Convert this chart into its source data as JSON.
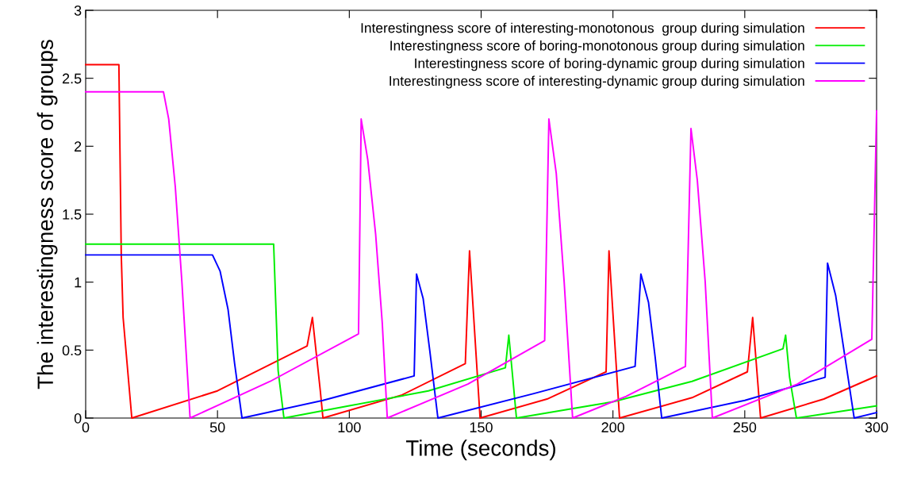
{
  "chart_data": {
    "type": "line",
    "xlabel": "Time (seconds)",
    "ylabel": "The interestingness score of groups",
    "xlim": [
      0,
      300
    ],
    "ylim": [
      0,
      3
    ],
    "xticks": [
      0,
      50,
      100,
      150,
      200,
      250,
      300
    ],
    "yticks": [
      0,
      0.5,
      1,
      1.5,
      2,
      2.5,
      3
    ],
    "grid": false,
    "legend": "top right",
    "line_style": "solid",
    "marker": "none",
    "series": [
      {
        "name": "Interestingness score of interesting-monotonous  group during simulation",
        "color": "#ff0000",
        "x": [
          0,
          12.6,
          13.5,
          14.2,
          17.5,
          50,
          84,
          86,
          89,
          90,
          120,
          144,
          145.6,
          149.6,
          175,
          197.4,
          198.5,
          202.5,
          230,
          251,
          253,
          256,
          280,
          300
        ],
        "values": [
          2.6,
          2.6,
          1.2,
          0.74,
          0,
          0.2,
          0.53,
          0.74,
          0.2,
          0,
          0.17,
          0.4,
          1.23,
          0,
          0.14,
          0.34,
          1.23,
          0,
          0.15,
          0.34,
          0.74,
          0,
          0.14,
          0.31
        ]
      },
      {
        "name": "Interestingness score of boring-monotonous group during simulation",
        "color": "#00ee00",
        "x": [
          0,
          71.3,
          73,
          75.2,
          100,
          130,
          159.2,
          160.5,
          163.4,
          200,
          230,
          264.5,
          265.5,
          267,
          269.6,
          300
        ],
        "values": [
          1.28,
          1.28,
          0.35,
          0,
          0.09,
          0.2,
          0.37,
          0.61,
          0,
          0.12,
          0.27,
          0.51,
          0.61,
          0.3,
          0,
          0.09
        ]
      },
      {
        "name": "Interestingness score of boring-dynamic group during simulation",
        "color": "#0000ff",
        "x": [
          0,
          48.1,
          51,
          54,
          56.5,
          59.3,
          90,
          124.6,
          125.5,
          128,
          130.5,
          133.6,
          170,
          208.4,
          210.6,
          213.5,
          216,
          218.5,
          250,
          280.5,
          281.4,
          284.5,
          288,
          291.5,
          300
        ],
        "values": [
          1.2,
          1.2,
          1.08,
          0.8,
          0.4,
          0,
          0.13,
          0.31,
          1.06,
          0.88,
          0.5,
          0,
          0.18,
          0.38,
          1.06,
          0.85,
          0.45,
          0,
          0.13,
          0.3,
          1.14,
          0.9,
          0.45,
          0,
          0.04
        ]
      },
      {
        "name": "Interestingness score of interesting-dynamic group during simulation",
        "color": "#ff00ff",
        "x": [
          0,
          29.5,
          31.5,
          34,
          36.5,
          39.6,
          70,
          103.5,
          104.5,
          107,
          110,
          112.5,
          114.4,
          145,
          174.1,
          175.7,
          178.5,
          181.5,
          184.7,
          205,
          227.5,
          229.6,
          232,
          235,
          237.7,
          270,
          298.2,
          300
        ],
        "values": [
          2.4,
          2.4,
          2.2,
          1.7,
          1.0,
          0,
          0.27,
          0.62,
          2.2,
          1.9,
          1.35,
          0.7,
          0,
          0.25,
          0.57,
          2.2,
          1.8,
          1.0,
          0,
          0.16,
          0.38,
          2.13,
          1.75,
          1.0,
          0,
          0.25,
          0.58,
          2.26
        ]
      }
    ]
  }
}
